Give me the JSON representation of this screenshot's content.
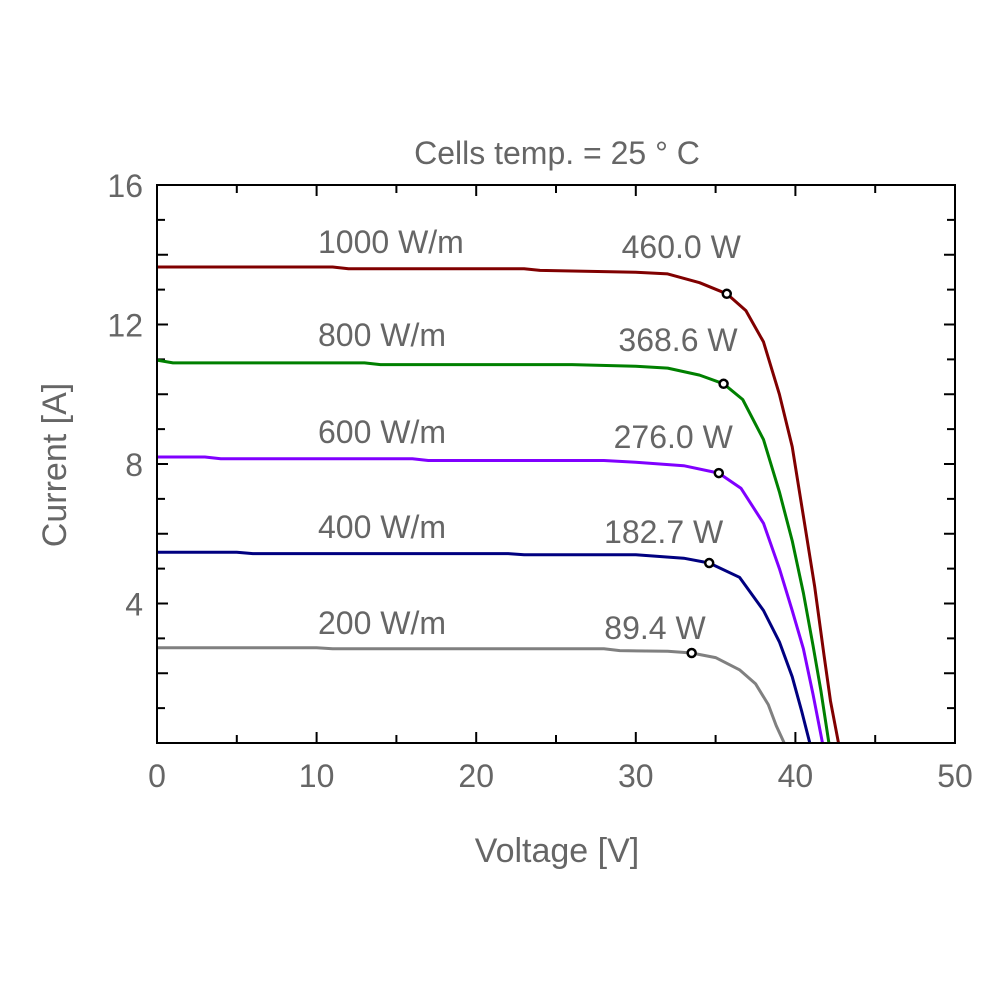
{
  "chart_data": {
    "type": "line",
    "title": "Cells temp. = 25 ° C",
    "xlabel": "Voltage [V]",
    "ylabel": "Current [A]",
    "xlim": [
      0,
      50
    ],
    "ylim": [
      0,
      16
    ],
    "xticks": [
      0,
      10,
      20,
      30,
      40,
      50
    ],
    "yticks": [
      4,
      8,
      12,
      16
    ],
    "grid": false,
    "series": [
      {
        "name": "1000 W/m",
        "power_label": "460.0 W",
        "color": "#800000",
        "mpp": [
          35.7,
          12.88
        ],
        "points": [
          [
            0,
            13.65
          ],
          [
            11,
            13.65
          ],
          [
            12,
            13.6
          ],
          [
            23,
            13.6
          ],
          [
            24,
            13.55
          ],
          [
            30,
            13.5
          ],
          [
            32,
            13.45
          ],
          [
            34,
            13.2
          ],
          [
            35.7,
            12.88
          ],
          [
            36.9,
            12.4
          ],
          [
            38,
            11.5
          ],
          [
            39,
            10
          ],
          [
            39.8,
            8.5
          ],
          [
            40.5,
            6.5
          ],
          [
            41.2,
            4.5
          ],
          [
            41.8,
            2.5
          ],
          [
            42.2,
            1.2
          ],
          [
            42.7,
            0
          ]
        ]
      },
      {
        "name": "800 W/m",
        "power_label": "368.6 W",
        "color": "#008000",
        "mpp": [
          35.5,
          10.3
        ],
        "points": [
          [
            0,
            10.98
          ],
          [
            1,
            10.9
          ],
          [
            13,
            10.9
          ],
          [
            14,
            10.85
          ],
          [
            26,
            10.85
          ],
          [
            30,
            10.8
          ],
          [
            32,
            10.75
          ],
          [
            34,
            10.55
          ],
          [
            35.5,
            10.3
          ],
          [
            36.7,
            9.85
          ],
          [
            38,
            8.7
          ],
          [
            39,
            7.2
          ],
          [
            39.8,
            5.8
          ],
          [
            40.5,
            4.3
          ],
          [
            41.1,
            2.8
          ],
          [
            41.6,
            1.5
          ],
          [
            42.1,
            0
          ]
        ]
      },
      {
        "name": "600 W/m",
        "power_label": "276.0 W",
        "color": "#8000ff",
        "mpp": [
          35.2,
          7.74
        ],
        "points": [
          [
            0,
            8.2
          ],
          [
            3,
            8.2
          ],
          [
            4,
            8.15
          ],
          [
            16,
            8.15
          ],
          [
            17,
            8.1
          ],
          [
            28,
            8.1
          ],
          [
            30,
            8.05
          ],
          [
            33,
            7.95
          ],
          [
            35.2,
            7.74
          ],
          [
            36.6,
            7.3
          ],
          [
            38,
            6.3
          ],
          [
            39,
            5.0
          ],
          [
            39.8,
            3.8
          ],
          [
            40.5,
            2.7
          ],
          [
            41.1,
            1.4
          ],
          [
            41.7,
            0
          ]
        ]
      },
      {
        "name": "400 W/m",
        "power_label": "182.7 W",
        "color": "#000080",
        "mpp": [
          34.6,
          5.16
        ],
        "points": [
          [
            0,
            5.47
          ],
          [
            5,
            5.47
          ],
          [
            6,
            5.43
          ],
          [
            22,
            5.43
          ],
          [
            23,
            5.4
          ],
          [
            30,
            5.4
          ],
          [
            33,
            5.3
          ],
          [
            34.6,
            5.16
          ],
          [
            36.5,
            4.75
          ],
          [
            38,
            3.8
          ],
          [
            39,
            2.9
          ],
          [
            39.8,
            1.9
          ],
          [
            40.4,
            0.9
          ],
          [
            40.9,
            0
          ]
        ]
      },
      {
        "name": "200 W/m",
        "power_label": "89.4 W",
        "color": "#808080",
        "mpp": [
          33.5,
          2.58
        ],
        "points": [
          [
            0,
            2.73
          ],
          [
            10,
            2.73
          ],
          [
            11,
            2.7
          ],
          [
            28,
            2.7
          ],
          [
            29,
            2.65
          ],
          [
            32,
            2.63
          ],
          [
            33.5,
            2.58
          ],
          [
            35,
            2.45
          ],
          [
            36.5,
            2.1
          ],
          [
            37.5,
            1.7
          ],
          [
            38.3,
            1.1
          ],
          [
            38.8,
            0.5
          ],
          [
            39.3,
            0
          ]
        ]
      }
    ]
  }
}
